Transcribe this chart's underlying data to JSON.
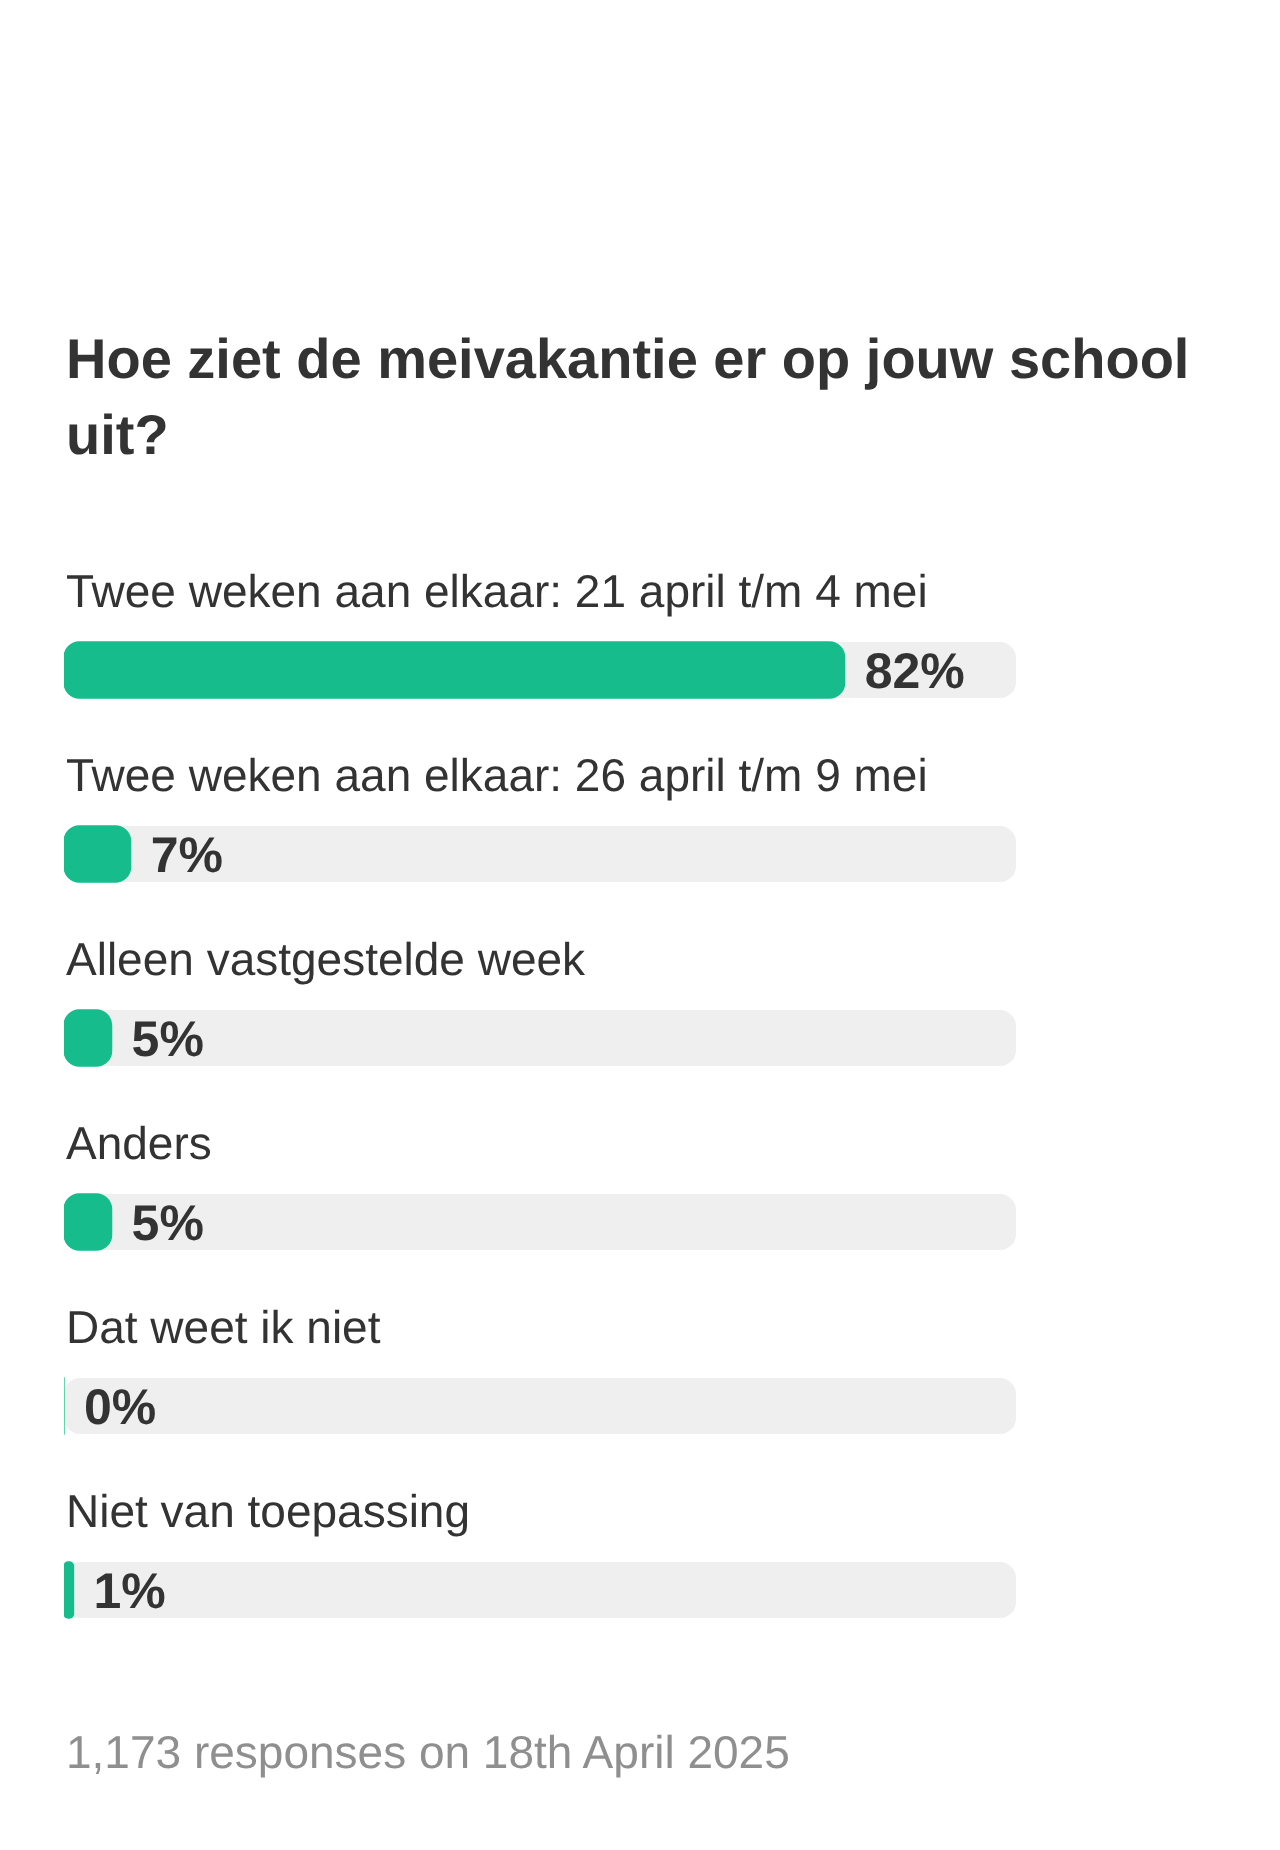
{
  "chart_data": {
    "type": "bar",
    "orientation": "horizontal",
    "title": "Hoe ziet de meivakantie er op jouw school uit?",
    "categories": [
      "Twee weken aan elkaar: 21 april t/m 4 mei",
      "Twee weken aan elkaar: 26 april t/m 9 mei",
      "Alleen vastgestelde week",
      "Anders",
      "Dat weet ik niet",
      "Niet van toepassing"
    ],
    "values": [
      82,
      7,
      5,
      5,
      0,
      1
    ],
    "color": "#16bc8c",
    "value_labels": [
      "82%",
      "7%",
      "5%",
      "5%",
      "0%",
      "1%"
    ],
    "tick_labels": "y",
    "grid": false,
    "legend": false,
    "annotations": [
      "1,173 responses on 18th April 2025"
    ]
  }
}
